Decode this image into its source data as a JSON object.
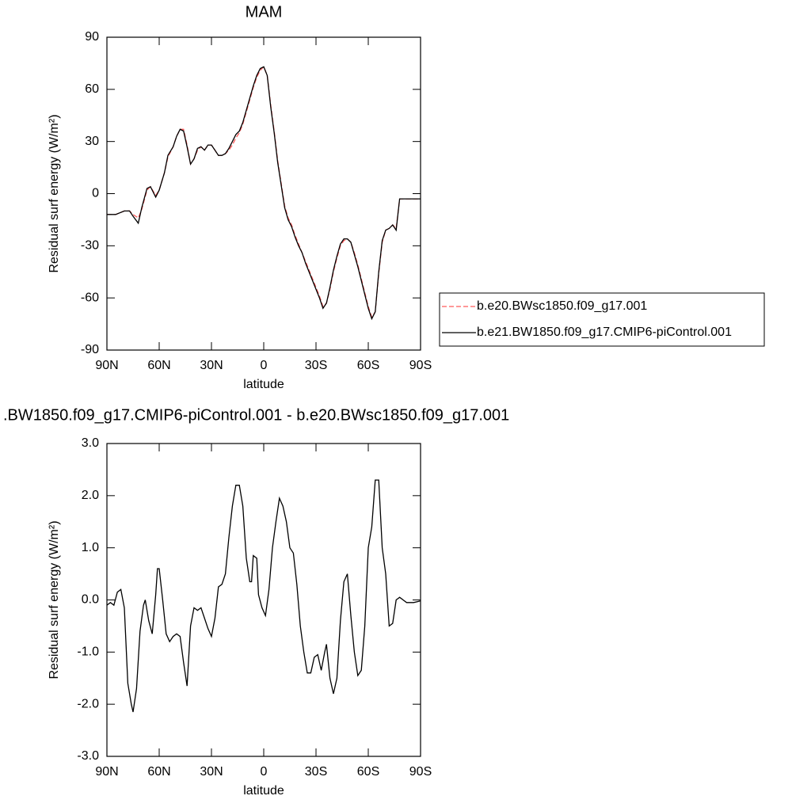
{
  "chart_data": [
    {
      "type": "line",
      "title": "MAM",
      "xlabel": "latitude",
      "ylabel": "Residual surf energy (W/m²)",
      "x": [
        90,
        85,
        80,
        77,
        75,
        72,
        70,
        67,
        65,
        62,
        60,
        57,
        55,
        52,
        50,
        48,
        46,
        44,
        42,
        40,
        38,
        36,
        34,
        32,
        30,
        28,
        26,
        24,
        22,
        20,
        18,
        16,
        14,
        12,
        10,
        8,
        6,
        4,
        2,
        0,
        -2,
        -4,
        -6,
        -8,
        -10,
        -12,
        -14,
        -16,
        -18,
        -20,
        -22,
        -24,
        -26,
        -28,
        -30,
        -32,
        -34,
        -36,
        -38,
        -40,
        -42,
        -44,
        -46,
        -48,
        -50,
        -52,
        -54,
        -56,
        -58,
        -60,
        -62,
        -64,
        -66,
        -68,
        -70,
        -72,
        -74,
        -76,
        -78,
        -80,
        -85,
        -90
      ],
      "series": [
        {
          "name": "b.e20.BWsc1850.f09_g17.001",
          "color": "#ff5a5a",
          "dash": true,
          "values": [
            -12,
            -12,
            -10,
            -10,
            -12,
            -14,
            -9,
            2,
            4,
            -1,
            2,
            12,
            21,
            27,
            33,
            37,
            37,
            28,
            17,
            20,
            25,
            27,
            25,
            28,
            28,
            25,
            22,
            22,
            23,
            25,
            28,
            32,
            35,
            40,
            47,
            54,
            61,
            67,
            71,
            73,
            68,
            51,
            36,
            19,
            6,
            -7,
            -14,
            -18,
            -24,
            -29,
            -34,
            -39,
            -44,
            -49,
            -54,
            -59,
            -65,
            -63,
            -55,
            -45,
            -37,
            -30,
            -27,
            -26,
            -28,
            -34,
            -41,
            -49,
            -57,
            -65,
            -71,
            -68,
            -46,
            -28,
            -21,
            -20,
            -18,
            -20,
            -3,
            -3,
            -3,
            -3
          ]
        },
        {
          "name": "b.e21.BW1850.f09_g17.CMIP6-piControl.001",
          "color": "#000000",
          "dash": false,
          "values": [
            -12,
            -12,
            -10,
            -10,
            -13,
            -17,
            -8,
            3,
            4,
            -2,
            2,
            12,
            22,
            27,
            33,
            37,
            36,
            27,
            17,
            20,
            26,
            27,
            25,
            28,
            28,
            25,
            22,
            22,
            23,
            26,
            30,
            34,
            36,
            41,
            48,
            55,
            62,
            68,
            72,
            73,
            68,
            50,
            35,
            18,
            5,
            -8,
            -15,
            -19,
            -25,
            -30,
            -34,
            -40,
            -45,
            -50,
            -55,
            -60,
            -66,
            -63,
            -54,
            -44,
            -36,
            -29,
            -26,
            -26,
            -28,
            -35,
            -42,
            -50,
            -58,
            -66,
            -72,
            -68,
            -45,
            -27,
            -21,
            -20,
            -18,
            -21,
            -3,
            -3,
            -3,
            -3
          ]
        }
      ],
      "xlim": [
        90,
        -90
      ],
      "xticks": [
        {
          "value": 90,
          "label": "90N"
        },
        {
          "value": 60,
          "label": "60N"
        },
        {
          "value": 30,
          "label": "30N"
        },
        0,
        {
          "value": -30,
          "label": "30S"
        },
        {
          "value": -60,
          "label": "60S"
        },
        {
          "value": -90,
          "label": "90S"
        }
      ],
      "ylim": [
        -90,
        90
      ],
      "yticks": [
        -90,
        -60,
        -30,
        0,
        30,
        60,
        90
      ],
      "legend": "right"
    },
    {
      "type": "line",
      "title": ".BW1850.f09_g17.CMIP6-piControl.001 - b.e20.BWsc1850.f09_g17.001",
      "xlabel": "latitude",
      "ylabel": "Residual surf energy (W/m²)",
      "x": [
        90,
        88,
        86,
        84,
        82,
        80,
        78,
        76,
        75,
        73,
        71,
        69,
        68,
        66,
        64,
        62,
        61,
        60,
        58,
        56,
        54,
        52,
        50,
        48,
        46,
        44,
        42,
        40,
        38,
        36,
        34,
        32,
        30,
        28,
        26,
        24,
        22,
        20,
        18,
        16,
        14,
        12,
        10,
        8,
        7,
        6,
        4,
        3,
        1,
        -1,
        -3,
        -5,
        -7,
        -9,
        -11,
        -13,
        -15,
        -17,
        -19,
        -21,
        -23,
        -25,
        -27,
        -29,
        -31,
        -33,
        -35,
        -36,
        -38,
        -40,
        -42,
        -44,
        -46,
        -48,
        -50,
        -52,
        -54,
        -56,
        -58,
        -60,
        -62,
        -64,
        -66,
        -68,
        -70,
        -72,
        -74,
        -76,
        -78,
        -80,
        -82,
        -86,
        -90
      ],
      "series": [
        {
          "color": "#000000",
          "dash": false,
          "values": [
            -0.1,
            -0.05,
            -0.1,
            0.15,
            0.2,
            -0.15,
            -1.6,
            -2.0,
            -2.15,
            -1.7,
            -0.6,
            -0.1,
            0,
            -0.4,
            -0.65,
            0.1,
            0.6,
            0.6,
            0,
            -0.65,
            -0.8,
            -0.7,
            -0.65,
            -0.7,
            -1.2,
            -1.65,
            -0.5,
            -0.15,
            -0.2,
            -0.15,
            -0.35,
            -0.55,
            -0.7,
            -0.35,
            0.25,
            0.3,
            0.5,
            1.2,
            1.8,
            2.2,
            2.2,
            1.8,
            0.8,
            0.35,
            0.35,
            0.85,
            0.8,
            0.1,
            -0.15,
            -0.3,
            0.2,
            1.0,
            1.5,
            1.95,
            1.8,
            1.5,
            1.0,
            0.9,
            0.3,
            -0.5,
            -1.0,
            -1.4,
            -1.4,
            -1.1,
            -1.05,
            -1.35,
            -1.0,
            -0.85,
            -1.5,
            -1.8,
            -1.5,
            -0.4,
            0.35,
            0.5,
            -0.3,
            -1.0,
            -1.45,
            -1.35,
            -0.5,
            1.0,
            1.4,
            2.3,
            2.3,
            1.0,
            0.5,
            -0.5,
            -0.45,
            0,
            0.05,
            0,
            -0.05,
            -0.05,
            -0.02
          ]
        }
      ],
      "xlim": [
        90,
        -90
      ],
      "xticks": [
        {
          "value": 90,
          "label": "90N"
        },
        {
          "value": 60,
          "label": "60N"
        },
        {
          "value": 30,
          "label": "30N"
        },
        0,
        {
          "value": -30,
          "label": "30S"
        },
        {
          "value": -60,
          "label": "60S"
        },
        {
          "value": -90,
          "label": "90S"
        }
      ],
      "ylim": [
        -3,
        3
      ],
      "yticks": [
        {
          "value": -3,
          "label": "-3.0"
        },
        {
          "value": -2,
          "label": "-2.0"
        },
        {
          "value": -1,
          "label": "-1.0"
        },
        {
          "value": 0,
          "label": "0.0"
        },
        {
          "value": 1,
          "label": "1.0"
        },
        {
          "value": 2,
          "label": "2.0"
        },
        {
          "value": 3,
          "label": "3.0"
        }
      ]
    }
  ]
}
